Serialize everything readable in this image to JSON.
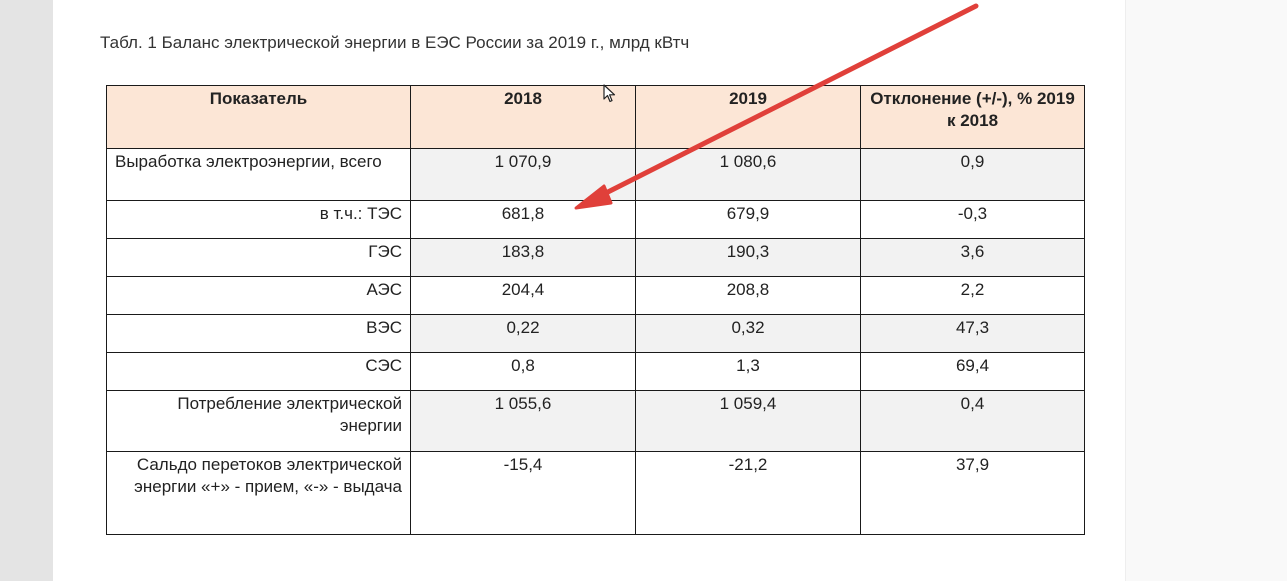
{
  "caption": "Табл. 1 Баланс электрической энергии в ЕЭС России за 2019 г., млрд кВтч",
  "table": {
    "headers": [
      "Показатель",
      "2018",
      "2019",
      "Отклонение (+/-), % 2019 к 2018"
    ],
    "rows": [
      {
        "label": "Выработка электроэнергии, всего",
        "v2018": "1 070,9",
        "v2019": "1 080,6",
        "dev": "0,9"
      },
      {
        "label": "в т.ч.: ТЭС",
        "v2018": "681,8",
        "v2019": "679,9",
        "dev": "-0,3"
      },
      {
        "label": "ГЭС",
        "v2018": "183,8",
        "v2019": "190,3",
        "dev": "3,6"
      },
      {
        "label": "АЭС",
        "v2018": "204,4",
        "v2019": "208,8",
        "dev": "2,2"
      },
      {
        "label": "ВЭС",
        "v2018": "0,22",
        "v2019": "0,32",
        "dev": "47,3"
      },
      {
        "label": "СЭС",
        "v2018": "0,8",
        "v2019": "1,3",
        "dev": "69,4"
      },
      {
        "label": "Потребление электрической энергии",
        "v2018": "1 055,6",
        "v2019": "1 059,4",
        "dev": "0,4"
      },
      {
        "label": "Сальдо перетоков электрической энергии «+» - прием, «-» - выдача",
        "v2018": "-15,4",
        "v2019": "-21,2",
        "dev": "37,9"
      }
    ]
  },
  "colors": {
    "header_bg": "#fce6d6",
    "shaded_cell": "#f2f2f2",
    "arrow": "#e0403a"
  },
  "icons": {
    "cursor": "mouse-pointer-icon",
    "annotation": "red-arrow-icon"
  }
}
